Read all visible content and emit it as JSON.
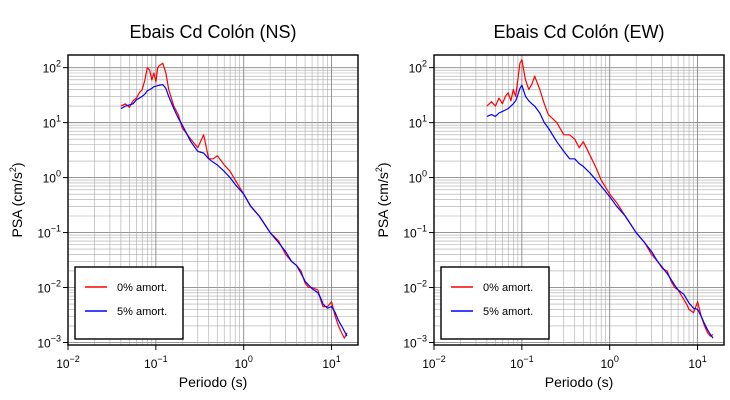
{
  "chart_data": [
    {
      "type": "line",
      "title": "Ebais Cd Colón (NS)",
      "xlabel": "Periodo (s)",
      "ylabel_main": "PSA (cm/s",
      "ylabel_exp": "2",
      "ylabel_close": ")",
      "x_scale": "log",
      "y_scale": "log",
      "xlim": [
        0.01,
        20
      ],
      "ylim": [
        0.0009,
        170
      ],
      "x_ticks": [
        {
          "base": "10",
          "exp": "−2",
          "value": 0.01
        },
        {
          "base": "10",
          "exp": "−1",
          "value": 0.1
        },
        {
          "base": "10",
          "exp": "0",
          "value": 1
        },
        {
          "base": "10",
          "exp": "1",
          "value": 10
        }
      ],
      "y_ticks": [
        {
          "base": "10",
          "exp": "−3",
          "value": 0.001
        },
        {
          "base": "10",
          "exp": "−2",
          "value": 0.01
        },
        {
          "base": "10",
          "exp": "−1",
          "value": 0.1
        },
        {
          "base": "10",
          "exp": "0",
          "value": 1
        },
        {
          "base": "10",
          "exp": "1",
          "value": 10
        },
        {
          "base": "10",
          "exp": "2",
          "value": 100
        }
      ],
      "grid": true,
      "legend_position": "bottom-left",
      "series": [
        {
          "name": "0% amort.",
          "color": "#ff0000",
          "x": [
            0.04,
            0.045,
            0.05,
            0.055,
            0.06,
            0.065,
            0.07,
            0.075,
            0.08,
            0.085,
            0.09,
            0.095,
            0.1,
            0.105,
            0.11,
            0.12,
            0.13,
            0.14,
            0.16,
            0.18,
            0.2,
            0.25,
            0.3,
            0.35,
            0.4,
            0.45,
            0.5,
            0.6,
            0.7,
            0.8,
            1.0,
            1.2,
            1.5,
            2.0,
            2.5,
            3.0,
            3.5,
            4.0,
            4.5,
            5.0,
            5.5,
            6.0,
            7.0,
            7.5,
            8.0,
            9.0,
            10.0,
            11.0,
            12.0,
            13.0,
            14.0,
            15.0
          ],
          "y": [
            20,
            22,
            19,
            25,
            28,
            35,
            40,
            60,
            100,
            90,
            60,
            80,
            55,
            100,
            110,
            120,
            80,
            40,
            20,
            14,
            8,
            5,
            3.5,
            6,
            2.2,
            2.2,
            2.5,
            1.7,
            1.3,
            0.9,
            0.5,
            0.3,
            0.2,
            0.1,
            0.07,
            0.04,
            0.03,
            0.025,
            0.02,
            0.012,
            0.01,
            0.01,
            0.009,
            0.006,
            0.0045,
            0.0045,
            0.0055,
            0.003,
            0.002,
            0.0015,
            0.0012,
            0.0015
          ]
        },
        {
          "name": "5% amort.",
          "color": "#0000ff",
          "x": [
            0.04,
            0.045,
            0.05,
            0.055,
            0.06,
            0.065,
            0.07,
            0.075,
            0.08,
            0.085,
            0.09,
            0.095,
            0.1,
            0.105,
            0.11,
            0.12,
            0.13,
            0.14,
            0.16,
            0.18,
            0.2,
            0.25,
            0.3,
            0.35,
            0.4,
            0.45,
            0.5,
            0.6,
            0.7,
            0.8,
            1.0,
            1.2,
            1.5,
            2.0,
            2.5,
            3.0,
            3.5,
            4.0,
            4.5,
            5.0,
            5.5,
            6.0,
            7.0,
            7.5,
            8.0,
            9.0,
            10.0,
            11.0,
            12.0,
            13.0,
            14.0,
            15.0
          ],
          "y": [
            18,
            20,
            21,
            22,
            26,
            28,
            30,
            33,
            38,
            40,
            42,
            45,
            46,
            47,
            48,
            49,
            42,
            30,
            18,
            12,
            9,
            4.5,
            3,
            2.8,
            2.2,
            1.9,
            1.7,
            1.3,
            1.0,
            0.75,
            0.5,
            0.3,
            0.2,
            0.1,
            0.065,
            0.045,
            0.03,
            0.025,
            0.018,
            0.013,
            0.011,
            0.0095,
            0.008,
            0.0065,
            0.005,
            0.0042,
            0.0045,
            0.0035,
            0.0025,
            0.002,
            0.0016,
            0.0013
          ]
        }
      ]
    },
    {
      "type": "line",
      "title": "Ebais Cd Colón (EW)",
      "xlabel": "Periodo (s)",
      "ylabel_main": "PSA (cm/s",
      "ylabel_exp": "2",
      "ylabel_close": ")",
      "x_scale": "log",
      "y_scale": "log",
      "xlim": [
        0.01,
        20
      ],
      "ylim": [
        0.0009,
        170
      ],
      "x_ticks": [
        {
          "base": "10",
          "exp": "−2",
          "value": 0.01
        },
        {
          "base": "10",
          "exp": "−1",
          "value": 0.1
        },
        {
          "base": "10",
          "exp": "0",
          "value": 1
        },
        {
          "base": "10",
          "exp": "1",
          "value": 10
        }
      ],
      "y_ticks": [
        {
          "base": "10",
          "exp": "−3",
          "value": 0.001
        },
        {
          "base": "10",
          "exp": "−2",
          "value": 0.01
        },
        {
          "base": "10",
          "exp": "−1",
          "value": 0.1
        },
        {
          "base": "10",
          "exp": "0",
          "value": 1
        },
        {
          "base": "10",
          "exp": "1",
          "value": 10
        },
        {
          "base": "10",
          "exp": "2",
          "value": 100
        }
      ],
      "grid": true,
      "legend_position": "bottom-left",
      "series": [
        {
          "name": "0% amort.",
          "color": "#ff0000",
          "x": [
            0.04,
            0.045,
            0.05,
            0.055,
            0.06,
            0.065,
            0.07,
            0.075,
            0.08,
            0.085,
            0.09,
            0.095,
            0.1,
            0.105,
            0.11,
            0.12,
            0.13,
            0.14,
            0.16,
            0.18,
            0.2,
            0.25,
            0.3,
            0.35,
            0.4,
            0.45,
            0.5,
            0.6,
            0.7,
            0.8,
            1.0,
            1.2,
            1.5,
            2.0,
            2.5,
            3.0,
            3.5,
            4.0,
            4.5,
            5.0,
            5.5,
            6.0,
            7.0,
            7.5,
            8.0,
            9.0,
            10.0,
            11.0,
            12.0,
            13.0,
            14.0,
            15.0
          ],
          "y": [
            20,
            24,
            20,
            28,
            22,
            30,
            35,
            25,
            40,
            30,
            60,
            120,
            140,
            90,
            60,
            40,
            50,
            70,
            40,
            22,
            14,
            10,
            6,
            6,
            5,
            3.5,
            4.5,
            2.5,
            1.5,
            0.9,
            0.5,
            0.35,
            0.2,
            0.1,
            0.065,
            0.04,
            0.03,
            0.022,
            0.02,
            0.013,
            0.01,
            0.009,
            0.006,
            0.005,
            0.004,
            0.0035,
            0.0055,
            0.003,
            0.002,
            0.0015,
            0.0013,
            0.0014
          ]
        },
        {
          "name": "5% amort.",
          "color": "#0000ff",
          "x": [
            0.04,
            0.045,
            0.05,
            0.055,
            0.06,
            0.065,
            0.07,
            0.075,
            0.08,
            0.085,
            0.09,
            0.095,
            0.1,
            0.105,
            0.11,
            0.12,
            0.13,
            0.14,
            0.16,
            0.18,
            0.2,
            0.25,
            0.3,
            0.35,
            0.4,
            0.45,
            0.5,
            0.6,
            0.7,
            0.8,
            1.0,
            1.2,
            1.5,
            2.0,
            2.5,
            3.0,
            3.5,
            4.0,
            4.5,
            5.0,
            5.5,
            6.0,
            7.0,
            7.5,
            8.0,
            9.0,
            10.0,
            11.0,
            12.0,
            13.0,
            14.0,
            15.0
          ],
          "y": [
            13,
            14,
            13,
            15,
            16,
            17,
            18,
            20,
            22,
            25,
            32,
            42,
            48,
            38,
            30,
            25,
            22,
            20,
            15,
            10,
            8,
            4.5,
            3,
            2.2,
            2.2,
            1.8,
            1.6,
            1.2,
            0.9,
            0.7,
            0.45,
            0.3,
            0.2,
            0.1,
            0.065,
            0.045,
            0.03,
            0.023,
            0.018,
            0.014,
            0.011,
            0.009,
            0.0075,
            0.0062,
            0.0052,
            0.0042,
            0.004,
            0.003,
            0.0022,
            0.0017,
            0.0014,
            0.0012
          ]
        }
      ]
    }
  ]
}
